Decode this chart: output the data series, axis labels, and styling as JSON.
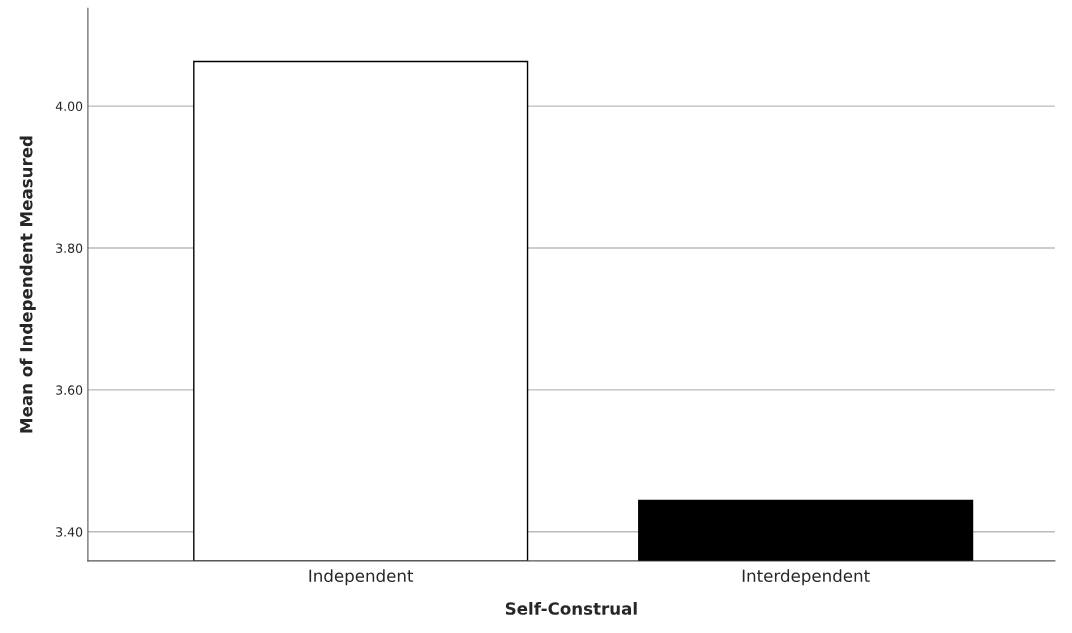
{
  "chart_data": {
    "type": "bar",
    "xlabel": "Self-Construal",
    "ylabel": "Mean of Independent Measured",
    "categories": [
      "Independent",
      "Interdependent"
    ],
    "values": [
      4.063,
      3.444
    ],
    "colors": [
      "#ffffff",
      "#000000"
    ],
    "ylim": [
      3.359,
      4.138
    ],
    "yticks": [
      {
        "value": 3.4,
        "label": "3.40"
      },
      {
        "value": 3.6,
        "label": "3.60"
      },
      {
        "value": 3.8,
        "label": "3.80"
      },
      {
        "value": 4.0,
        "label": "4.00"
      }
    ],
    "grid": "y"
  }
}
